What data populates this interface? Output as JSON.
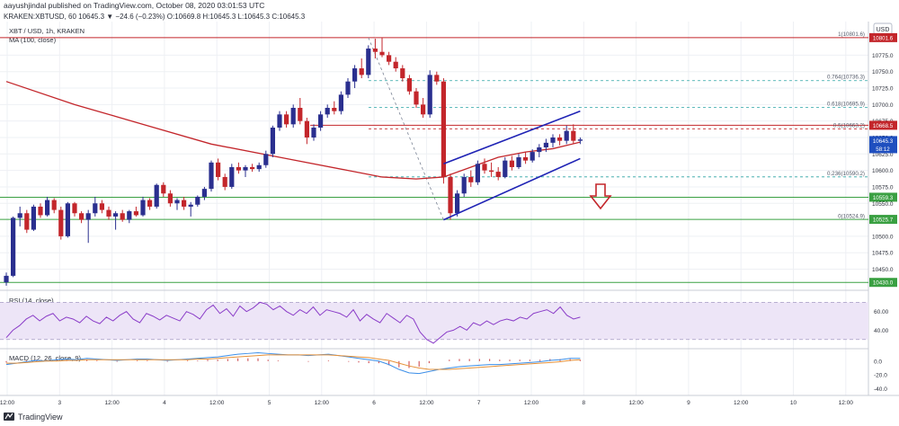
{
  "header": {
    "published_line": "aayushjindal published on TradingView.com, October 08, 2020 03:01:53 UTC",
    "ohlc_line": "KRAKEN:XBTUSD, 60  10645.3  ▼ −24.6 (−0.23%)  O:10669.8  H:10645.3  L:10645.3  C:10645.3"
  },
  "legend": {
    "symbol": "XBT / USD, 1h, KRAKEN",
    "ma": "MA (100, close)",
    "rsi": "RSI (14, close)",
    "macd": "MACD (12, 26, close, 9)"
  },
  "currency": "USD",
  "footer": {
    "brand": "TradingView"
  },
  "colors": {
    "up": "#2a2f8f",
    "down": "#c3262b",
    "ma": "#c3262b",
    "channel": "#1f23b5",
    "support": "#3aa042",
    "fib_dashed": "#2ca5a5",
    "grid": "#eef0f4",
    "rsi_band": "#ede5f7",
    "rsi_line": "#8a3cc8",
    "macd_line": "#3b8ee8",
    "signal_line": "#e69138",
    "histogram": "#c3262b"
  },
  "chart_data": {
    "type": "candlestick",
    "price_axis": {
      "ticks": [
        "10775.0",
        "10750.0",
        "10725.0",
        "10700.0",
        "10675.0",
        "10650.0",
        "10625.0",
        "10600.0",
        "10575.0",
        "10550.0",
        "10500.0",
        "10475.0",
        "10450.0"
      ],
      "ylim": [
        10418,
        10826
      ]
    },
    "time_axis": {
      "ticks": [
        "12:00",
        "3",
        "12:00",
        "4",
        "12:00",
        "5",
        "12:00",
        "6",
        "12:00",
        "7",
        "12:00",
        "8",
        "12:00",
        "9",
        "12:00",
        "10",
        "12:00"
      ]
    },
    "candles": [
      [
        10430,
        10445,
        10425,
        10440
      ],
      [
        10440,
        10530,
        10438,
        10528
      ],
      [
        10528,
        10545,
        10515,
        10535
      ],
      [
        10535,
        10540,
        10505,
        10510
      ],
      [
        10510,
        10548,
        10508,
        10545
      ],
      [
        10545,
        10550,
        10528,
        10532
      ],
      [
        10532,
        10560,
        10530,
        10555
      ],
      [
        10555,
        10558,
        10535,
        10540
      ],
      [
        10540,
        10545,
        10495,
        10500
      ],
      [
        10500,
        10552,
        10498,
        10550
      ],
      [
        10550,
        10552,
        10530,
        10535
      ],
      [
        10535,
        10538,
        10520,
        10525
      ],
      [
        10525,
        10540,
        10490,
        10535
      ],
      [
        10535,
        10560,
        10530,
        10550
      ],
      [
        10550,
        10555,
        10535,
        10540
      ],
      [
        10540,
        10545,
        10525,
        10530
      ],
      [
        10530,
        10538,
        10510,
        10535
      ],
      [
        10535,
        10540,
        10522,
        10525
      ],
      [
        10525,
        10540,
        10520,
        10538
      ],
      [
        10538,
        10545,
        10530,
        10532
      ],
      [
        10532,
        10560,
        10530,
        10555
      ],
      [
        10555,
        10558,
        10540,
        10545
      ],
      [
        10545,
        10580,
        10542,
        10578
      ],
      [
        10578,
        10582,
        10560,
        10565
      ],
      [
        10565,
        10570,
        10545,
        10550
      ],
      [
        10550,
        10558,
        10540,
        10555
      ],
      [
        10555,
        10560,
        10540,
        10545
      ],
      [
        10545,
        10552,
        10530,
        10548
      ],
      [
        10548,
        10562,
        10545,
        10560
      ],
      [
        10560,
        10575,
        10555,
        10572
      ],
      [
        10572,
        10615,
        10568,
        10612
      ],
      [
        10612,
        10618,
        10585,
        10590
      ],
      [
        10590,
        10595,
        10570,
        10575
      ],
      [
        10575,
        10610,
        10572,
        10605
      ],
      [
        10605,
        10612,
        10595,
        10600
      ],
      [
        10600,
        10608,
        10590,
        10605
      ],
      [
        10605,
        10610,
        10598,
        10602
      ],
      [
        10602,
        10612,
        10598,
        10608
      ],
      [
        10608,
        10630,
        10604,
        10625
      ],
      [
        10625,
        10668,
        10620,
        10665
      ],
      [
        10665,
        10690,
        10660,
        10685
      ],
      [
        10685,
        10690,
        10665,
        10670
      ],
      [
        10670,
        10700,
        10665,
        10695
      ],
      [
        10695,
        10710,
        10670,
        10675
      ],
      [
        10675,
        10680,
        10640,
        10650
      ],
      [
        10650,
        10670,
        10645,
        10665
      ],
      [
        10665,
        10690,
        10660,
        10685
      ],
      [
        10685,
        10700,
        10680,
        10695
      ],
      [
        10695,
        10705,
        10685,
        10690
      ],
      [
        10690,
        10720,
        10685,
        10715
      ],
      [
        10715,
        10740,
        10710,
        10735
      ],
      [
        10735,
        10760,
        10725,
        10755
      ],
      [
        10755,
        10770,
        10740,
        10745
      ],
      [
        10745,
        10790,
        10740,
        10785
      ],
      [
        10785,
        10800,
        10770,
        10780
      ],
      [
        10780,
        10802,
        10772,
        10775
      ],
      [
        10775,
        10780,
        10760,
        10765
      ],
      [
        10765,
        10772,
        10750,
        10755
      ],
      [
        10755,
        10760,
        10735,
        10740
      ],
      [
        10740,
        10745,
        10715,
        10720
      ],
      [
        10720,
        10725,
        10695,
        10700
      ],
      [
        10700,
        10710,
        10680,
        10685
      ],
      [
        10685,
        10752,
        10680,
        10745
      ],
      [
        10745,
        10750,
        10730,
        10735
      ],
      [
        10735,
        10740,
        10580,
        10590
      ],
      [
        10590,
        10595,
        10525,
        10535
      ],
      [
        10535,
        10570,
        10530,
        10565
      ],
      [
        10565,
        10595,
        10560,
        10590
      ],
      [
        10590,
        10600,
        10575,
        10582
      ],
      [
        10582,
        10615,
        10578,
        10610
      ],
      [
        10610,
        10618,
        10595,
        10600
      ],
      [
        10600,
        10612,
        10590,
        10598
      ],
      [
        10598,
        10605,
        10585,
        10590
      ],
      [
        10590,
        10620,
        10588,
        10615
      ],
      [
        10615,
        10622,
        10600,
        10605
      ],
      [
        10605,
        10625,
        10602,
        10620
      ],
      [
        10620,
        10628,
        10610,
        10615
      ],
      [
        10615,
        10632,
        10612,
        10628
      ],
      [
        10628,
        10640,
        10620,
        10635
      ],
      [
        10635,
        10648,
        10628,
        10642
      ],
      [
        10642,
        10655,
        10635,
        10650
      ],
      [
        10650,
        10655,
        10638,
        10645
      ],
      [
        10645,
        10668,
        10640,
        10660
      ],
      [
        10660,
        10670,
        10640,
        10645
      ],
      [
        10645,
        10650,
        10640,
        10647
      ]
    ],
    "ma_100": [
      [
        0,
        10735
      ],
      [
        10,
        10700
      ],
      [
        20,
        10670
      ],
      [
        30,
        10640
      ],
      [
        40,
        10620
      ],
      [
        50,
        10600
      ],
      [
        55,
        10590
      ],
      [
        60,
        10587
      ],
      [
        64,
        10590
      ],
      [
        68,
        10605
      ],
      [
        72,
        10620
      ],
      [
        76,
        10628
      ],
      [
        80,
        10633
      ],
      [
        84,
        10643
      ]
    ],
    "levels": [
      {
        "label": "10801.6",
        "value": 10801.6,
        "color": "#c3262b"
      },
      {
        "label": "10668.5",
        "value": 10668.5,
        "color": "#c3262b"
      },
      {
        "label": "10645.3",
        "value": 10645.3,
        "color": "#1f4fbf"
      },
      {
        "label": "58:12",
        "value": 10633,
        "color": "#1f4fbf"
      },
      {
        "label": "10559.3",
        "value": 10559.3,
        "color": "#3aa042"
      },
      {
        "label": "10525.7",
        "value": 10525.7,
        "color": "#3aa042"
      },
      {
        "label": "10430.0",
        "value": 10430.0,
        "color": "#3aa042"
      }
    ],
    "fib_levels": [
      {
        "label": "1(10801.6)",
        "value": 10801.6
      },
      {
        "label": "0.764(10736.3)",
        "value": 10736.3
      },
      {
        "label": "0.618(10695.9)",
        "value": 10695.9
      },
      {
        "label": "0.5(10663.2)",
        "value": 10663.2
      },
      {
        "label": "0.236(10590.2)",
        "value": 10590.2
      },
      {
        "label": "0(10524.9)",
        "value": 10524.9
      }
    ],
    "channel_upper": [
      [
        64,
        10610
      ],
      [
        84,
        10690
      ]
    ],
    "channel_lower": [
      [
        64,
        10525
      ],
      [
        84,
        10618
      ]
    ],
    "rsi": {
      "ticks": [
        "60.00",
        "40.00"
      ],
      "ylim": [
        22,
        80
      ],
      "values": [
        32,
        40,
        45,
        52,
        56,
        50,
        55,
        58,
        50,
        54,
        52,
        48,
        55,
        50,
        47,
        54,
        50,
        56,
        60,
        52,
        48,
        58,
        55,
        51,
        56,
        53,
        50,
        60,
        57,
        52,
        62,
        67,
        58,
        63,
        55,
        66,
        60,
        64,
        70,
        68,
        62,
        66,
        60,
        56,
        62,
        58,
        65,
        56,
        62,
        60,
        58,
        54,
        62,
        50,
        57,
        52,
        48,
        58,
        53,
        48,
        56,
        52,
        38,
        30,
        26,
        32,
        38,
        40,
        44,
        40,
        48,
        45,
        50,
        46,
        50,
        52,
        50,
        54,
        52,
        58,
        60,
        62,
        58,
        65,
        56,
        52,
        54
      ]
    },
    "macd": {
      "ticks": [
        "0.0",
        "-20.0",
        "-40.0"
      ],
      "ylim": [
        -47,
        14
      ],
      "macd_line": [
        -5,
        -3,
        -1,
        1,
        0,
        2,
        3,
        2,
        4,
        3,
        2,
        1,
        2,
        3,
        3,
        2,
        1,
        2,
        3,
        4,
        5,
        6,
        8,
        10,
        11,
        12,
        11,
        10,
        9,
        9,
        8,
        9,
        10,
        8,
        6,
        4,
        2,
        0,
        -5,
        -12,
        -17,
        -18,
        -15,
        -12,
        -10,
        -8,
        -7,
        -6,
        -5,
        -5,
        -4,
        -3,
        -2,
        -1,
        1,
        2,
        4,
        4
      ],
      "signal_line": [
        -3,
        -3,
        -2,
        -1,
        0,
        0,
        1,
        1,
        2,
        2,
        2,
        2,
        2,
        2,
        2,
        2,
        2,
        2,
        2,
        3,
        3,
        4,
        5,
        6,
        7,
        8,
        9,
        9,
        9,
        9,
        9,
        9,
        9,
        8,
        7,
        6,
        5,
        3,
        1,
        -3,
        -7,
        -10,
        -12,
        -12,
        -12,
        -11,
        -10,
        -9,
        -8,
        -7,
        -6,
        -5,
        -4,
        -3,
        -2,
        -1,
        1,
        2
      ],
      "histogram": [
        -2,
        0,
        1,
        2,
        0,
        2,
        2,
        1,
        2,
        1,
        0,
        -1,
        0,
        1,
        1,
        0,
        -1,
        0,
        1,
        1,
        2,
        2,
        3,
        4,
        4,
        4,
        2,
        1,
        0,
        0,
        -1,
        0,
        1,
        0,
        -1,
        -2,
        -3,
        -3,
        -6,
        -9,
        -10,
        -8,
        -3,
        0,
        2,
        3,
        3,
        3,
        3,
        2,
        2,
        2,
        2,
        2,
        3,
        3,
        3,
        2
      ]
    }
  }
}
